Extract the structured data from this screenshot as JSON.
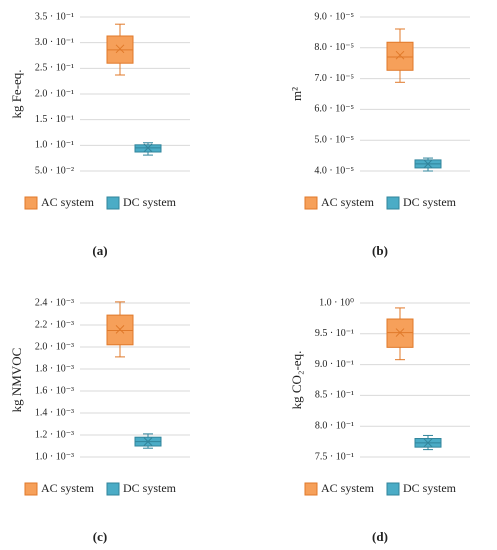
{
  "chart_data": [
    {
      "type": "box",
      "caption": "(a)",
      "ylabel": "kg Fe-eq.",
      "ylim": [
        0.05,
        0.35
      ],
      "yticks": [
        {
          "value": 0.05,
          "label": "5.0 · 10⁻²"
        },
        {
          "value": 0.1,
          "label": "1.0 · 10⁻¹"
        },
        {
          "value": 0.15,
          "label": "1.5 · 10⁻¹"
        },
        {
          "value": 0.2,
          "label": "2.0 · 10⁻¹"
        },
        {
          "value": 0.25,
          "label": "2.5 · 10⁻¹"
        },
        {
          "value": 0.3,
          "label": "3.0 · 10⁻¹"
        },
        {
          "value": 0.35,
          "label": "3.5 · 10⁻¹"
        }
      ],
      "grid": true,
      "series": [
        {
          "name": "AC system",
          "color": "#f6a05a",
          "edge": "#e0792a",
          "whislo": 0.237,
          "q1": 0.26,
          "median": 0.286,
          "q3": 0.313,
          "whishi": 0.336,
          "mean": 0.288
        },
        {
          "name": "DC system",
          "color": "#4bacc6",
          "edge": "#31849b",
          "whislo": 0.081,
          "q1": 0.087,
          "median": 0.095,
          "q3": 0.101,
          "whishi": 0.105,
          "mean": 0.095
        }
      ]
    },
    {
      "type": "box",
      "caption": "(b)",
      "ylabel": "m²",
      "ylim": [
        4e-05,
        9e-05
      ],
      "yticks": [
        {
          "value": 4e-05,
          "label": "4.0 · 10⁻⁵"
        },
        {
          "value": 5e-05,
          "label": "5.0 · 10⁻⁵"
        },
        {
          "value": 6e-05,
          "label": "6.0 · 10⁻⁵"
        },
        {
          "value": 7e-05,
          "label": "7.0 · 10⁻⁵"
        },
        {
          "value": 8e-05,
          "label": "8.0 · 10⁻⁵"
        },
        {
          "value": 9e-05,
          "label": "9.0 · 10⁻⁵"
        }
      ],
      "grid": true,
      "series": [
        {
          "name": "AC system",
          "color": "#f6a05a",
          "edge": "#e0792a",
          "whislo": 6.88e-05,
          "q1": 7.27e-05,
          "median": 7.7e-05,
          "q3": 8.18e-05,
          "whishi": 8.61e-05,
          "mean": 7.76e-05
        },
        {
          "name": "DC system",
          "color": "#4bacc6",
          "edge": "#31849b",
          "whislo": 4e-05,
          "q1": 4.1e-05,
          "median": 4.23e-05,
          "q3": 4.36e-05,
          "whishi": 4.42e-05,
          "mean": 4.23e-05
        }
      ]
    },
    {
      "type": "box",
      "caption": "(c)",
      "ylabel": "kg NMVOC",
      "ylim": [
        0.001,
        0.0024
      ],
      "yticks": [
        {
          "value": 0.001,
          "label": "1.0 · 10⁻³"
        },
        {
          "value": 0.0012,
          "label": "1.2 · 10⁻³"
        },
        {
          "value": 0.0014,
          "label": "1.4 · 10⁻³"
        },
        {
          "value": 0.0016,
          "label": "1.6 · 10⁻³"
        },
        {
          "value": 0.0018,
          "label": "1.8 · 10⁻³"
        },
        {
          "value": 0.002,
          "label": "2.0 · 10⁻³"
        },
        {
          "value": 0.0022,
          "label": "2.2 · 10⁻³"
        },
        {
          "value": 0.0024,
          "label": "2.4 · 10⁻³"
        }
      ],
      "grid": true,
      "series": [
        {
          "name": "AC system",
          "color": "#f6a05a",
          "edge": "#e0792a",
          "whislo": 0.00191,
          "q1": 0.00202,
          "median": 0.00215,
          "q3": 0.00229,
          "whishi": 0.00241,
          "mean": 0.00216
        },
        {
          "name": "DC system",
          "color": "#4bacc6",
          "edge": "#31849b",
          "whislo": 0.00108,
          "q1": 0.0011,
          "median": 0.00114,
          "q3": 0.00118,
          "whishi": 0.00121,
          "mean": 0.00114
        }
      ]
    },
    {
      "type": "box",
      "caption": "(d)",
      "ylabel": "kg CO₂-eq.",
      "ylim": [
        0.75,
        1.0
      ],
      "yticks": [
        {
          "value": 0.75,
          "label": "7.5 · 10⁻¹"
        },
        {
          "value": 0.8,
          "label": "8.0 · 10⁻¹"
        },
        {
          "value": 0.85,
          "label": "8.5 · 10⁻¹"
        },
        {
          "value": 0.9,
          "label": "9.0 · 10⁻¹"
        },
        {
          "value": 0.95,
          "label": "9.5 · 10⁻¹"
        },
        {
          "value": 1.0,
          "label": "1.0 · 10⁰"
        }
      ],
      "grid": true,
      "series": [
        {
          "name": "AC system",
          "color": "#f6a05a",
          "edge": "#e0792a",
          "whislo": 0.908,
          "q1": 0.928,
          "median": 0.952,
          "q3": 0.974,
          "whishi": 0.992,
          "mean": 0.952
        },
        {
          "name": "DC system",
          "color": "#4bacc6",
          "edge": "#31849b",
          "whislo": 0.762,
          "q1": 0.766,
          "median": 0.773,
          "q3": 0.78,
          "whishi": 0.785,
          "mean": 0.773
        }
      ]
    }
  ]
}
